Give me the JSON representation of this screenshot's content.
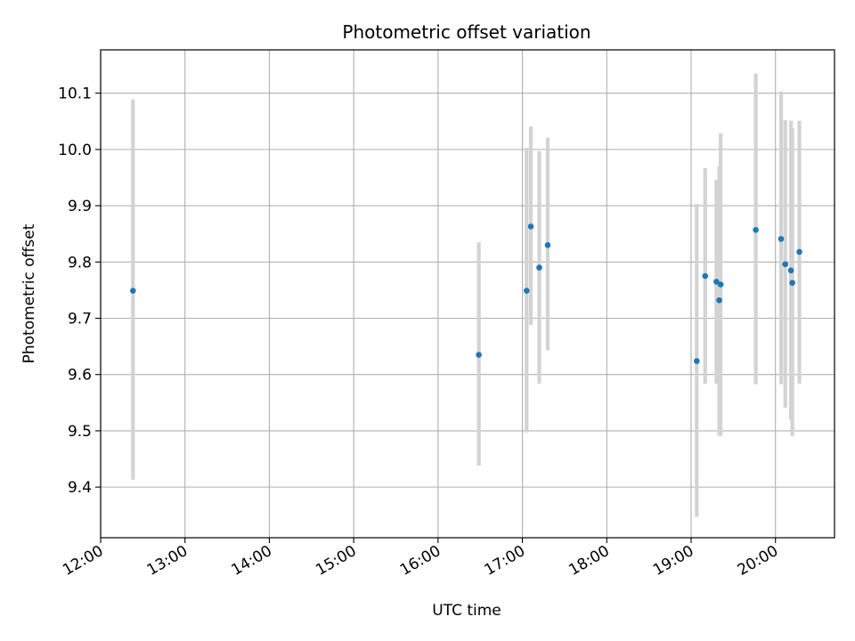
{
  "chart_data": {
    "type": "scatter",
    "title": "Photometric offset variation",
    "xlabel": "UTC time",
    "ylabel": "Photometric offset",
    "xlim": [
      "12:00",
      "20:42"
    ],
    "ylim": [
      9.31,
      10.177
    ],
    "grid": true,
    "legend": "none",
    "x_ticks": [
      "12:00",
      "13:00",
      "14:00",
      "15:00",
      "16:00",
      "17:00",
      "18:00",
      "19:00",
      "20:00"
    ],
    "y_ticks": [
      9.4,
      9.5,
      9.6,
      9.7,
      9.8,
      9.9,
      10.0,
      10.1
    ],
    "y_tick_labels": [
      "9.4",
      "9.5",
      "9.6",
      "9.7",
      "9.8",
      "9.9",
      "10.0",
      "10.1"
    ],
    "point_color": "#1f77b4",
    "errorbar_color": "#d3d3d3",
    "points": [
      {
        "time": "12:23",
        "y": 9.749,
        "err_low": 9.413,
        "err_high": 10.089
      },
      {
        "time": "16:29",
        "y": 9.635,
        "err_low": 9.438,
        "err_high": 9.835
      },
      {
        "time": "17:03",
        "y": 9.749,
        "err_low": 9.497,
        "err_high": 10.003
      },
      {
        "time": "17:06",
        "y": 9.863,
        "err_low": 9.688,
        "err_high": 10.041
      },
      {
        "time": "17:12",
        "y": 9.79,
        "err_low": 9.584,
        "err_high": 9.997
      },
      {
        "time": "17:18",
        "y": 9.83,
        "err_low": 9.643,
        "err_high": 10.021
      },
      {
        "time": "19:04",
        "y": 9.624,
        "err_low": 9.347,
        "err_high": 9.903
      },
      {
        "time": "19:10",
        "y": 9.775,
        "err_low": 9.584,
        "err_high": 9.967
      },
      {
        "time": "19:18",
        "y": 9.765,
        "err_low": 9.584,
        "err_high": 9.946
      },
      {
        "time": "19:20",
        "y": 9.732,
        "err_low": 9.491,
        "err_high": 9.97
      },
      {
        "time": "19:21",
        "y": 9.76,
        "err_low": 9.491,
        "err_high": 10.029
      },
      {
        "time": "19:46",
        "y": 9.857,
        "err_low": 9.583,
        "err_high": 10.135
      },
      {
        "time": "20:04",
        "y": 9.841,
        "err_low": 9.583,
        "err_high": 10.103
      },
      {
        "time": "20:07",
        "y": 9.796,
        "err_low": 9.541,
        "err_high": 10.052
      },
      {
        "time": "20:11",
        "y": 9.785,
        "err_low": 9.52,
        "err_high": 10.051
      },
      {
        "time": "20:12",
        "y": 9.763,
        "err_low": 9.491,
        "err_high": 10.037
      },
      {
        "time": "20:17",
        "y": 9.818,
        "err_low": 9.584,
        "err_high": 10.051
      }
    ]
  }
}
